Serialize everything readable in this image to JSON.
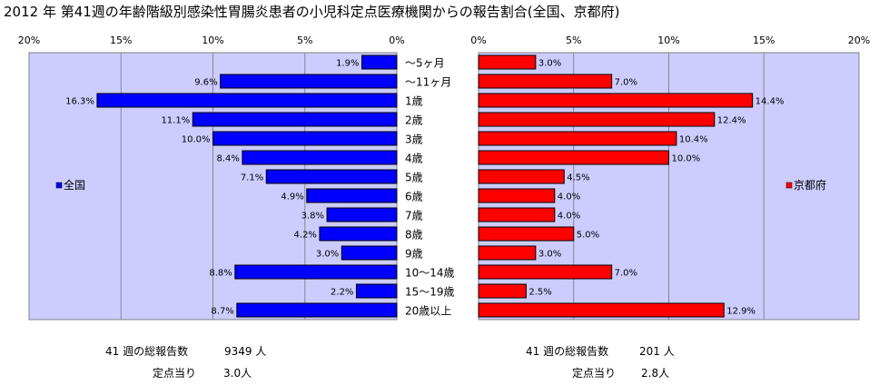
{
  "title": "2012 年 第41週の年齢階級別感染性胃腸炎患者の小児科定点医療機関からの報告割合(全国、京都府)",
  "chart_data": [
    {
      "type": "bar",
      "orientation": "horizontal",
      "direction": "right-to-left",
      "series": [
        {
          "name": "全国",
          "color": "#0000ff",
          "values": [
            1.9,
            9.6,
            16.3,
            11.1,
            10.0,
            8.4,
            7.1,
            4.9,
            3.8,
            4.2,
            3.0,
            8.8,
            2.2,
            8.7
          ]
        }
      ],
      "value_labels": [
        "1.9%",
        "9.6%",
        "16.3%",
        "11.1%",
        "10.0%",
        "8.4%",
        "7.1%",
        "4.9%",
        "3.8%",
        "4.2%",
        "3.0%",
        "8.8%",
        "2.2%",
        "8.7%"
      ],
      "xlim": [
        0,
        20
      ],
      "ticks": [
        "20%",
        "15%",
        "10%",
        "5%",
        "0%"
      ],
      "grid": true,
      "legend": "left",
      "plot_bg": "#ccccff"
    },
    {
      "type": "bar",
      "orientation": "horizontal",
      "direction": "left-to-right",
      "series": [
        {
          "name": "京都府",
          "color": "#ff0000",
          "values": [
            3.0,
            7.0,
            14.4,
            12.4,
            10.4,
            10.0,
            4.5,
            4.0,
            4.0,
            5.0,
            3.0,
            7.0,
            2.5,
            12.9
          ]
        }
      ],
      "value_labels": [
        "3.0%",
        "7.0%",
        "14.4%",
        "12.4%",
        "10.4%",
        "10.0%",
        "4.5%",
        "4.0%",
        "4.0%",
        "5.0%",
        "3.0%",
        "7.0%",
        "2.5%",
        "12.9%"
      ],
      "xlim": [
        0,
        20
      ],
      "ticks": [
        "0%",
        "5%",
        "10%",
        "15%",
        "20%"
      ],
      "grid": true,
      "legend": "right",
      "plot_bg": "#ccccff"
    }
  ],
  "categories": [
    "～5ヶ月",
    "～11ヶ月",
    "1歳",
    "2歳",
    "3歳",
    "4歳",
    "5歳",
    "6歳",
    "7歳",
    "8歳",
    "9歳",
    "10～14歳",
    "15～19歳",
    "20歳以上"
  ],
  "footer": {
    "left": {
      "total_label": "41 週の総報告数",
      "total_value": "9349 人",
      "per_label": "定点当り",
      "per_value": "3.0人"
    },
    "right": {
      "total_label": "41 週の総報告数",
      "total_value": "201 人",
      "per_label": "定点当り",
      "per_value": "2.8人"
    }
  }
}
